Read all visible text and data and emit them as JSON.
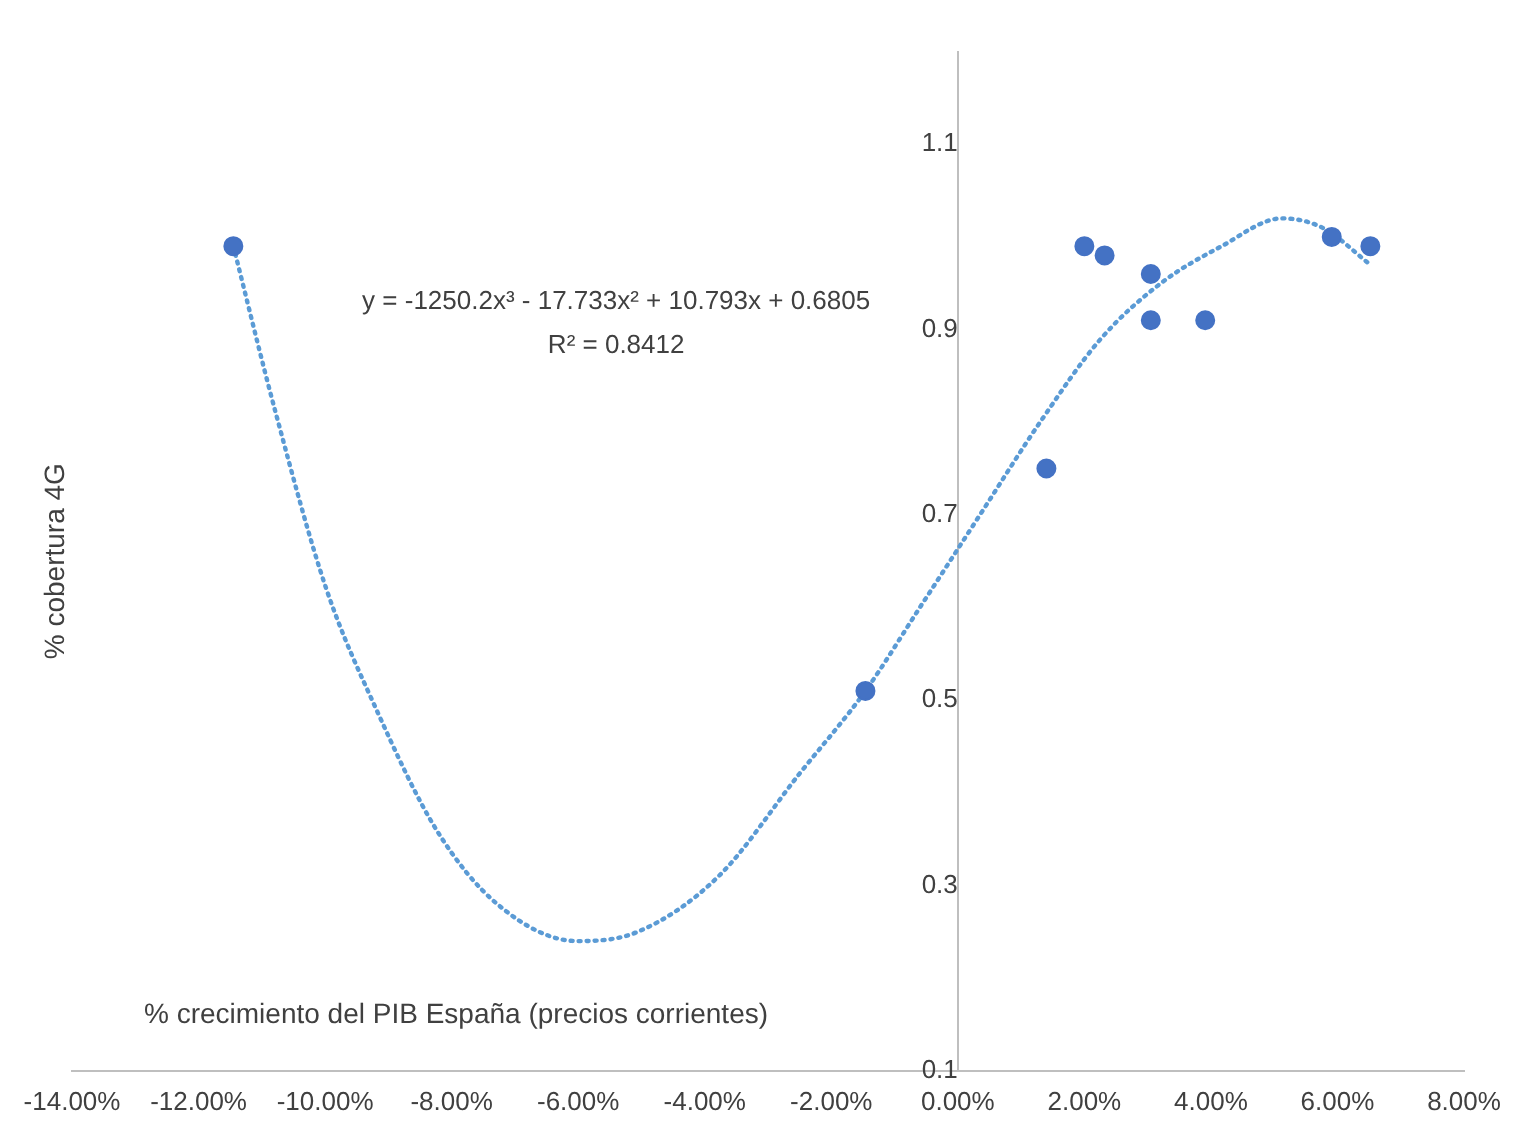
{
  "chart_data": {
    "type": "scatter",
    "xlabel": "% crecimiento del PIB España (precios corrientes)",
    "ylabel": "% cobertura 4G",
    "annotations": [
      "y = -1250.2x³ - 17.733x² + 10.793x + 0.6805",
      "R² = 0.8412"
    ],
    "xlim": [
      -14,
      8
    ],
    "xticks": [
      {
        "value": -14,
        "label": "-14.00%"
      },
      {
        "value": -12,
        "label": "-12.00%"
      },
      {
        "value": -10,
        "label": "-10.00%"
      },
      {
        "value": -8,
        "label": "-8.00%"
      },
      {
        "value": -6,
        "label": "-6.00%"
      },
      {
        "value": -4,
        "label": "-4.00%"
      },
      {
        "value": -2,
        "label": "-2.00%"
      },
      {
        "value": 0,
        "label": "0.00%"
      },
      {
        "value": 2,
        "label": "2.00%"
      },
      {
        "value": 4,
        "label": "4.00%"
      },
      {
        "value": 6,
        "label": "6.00%"
      },
      {
        "value": 8,
        "label": "8.00%"
      }
    ],
    "ylim": [
      0.1,
      1.2
    ],
    "yticks": [
      0.1,
      0.3,
      0.5,
      0.7,
      0.9,
      1.1
    ],
    "grid": false,
    "legend": false,
    "marker": "circle",
    "series": [
      {
        "type": "scatter",
        "color": "#4472c4",
        "x": [
          -11.45,
          -1.46,
          1.4,
          2.0,
          2.32,
          3.05,
          3.05,
          3.91,
          5.91,
          6.52
        ],
        "values": [
          0.99,
          0.51,
          0.75,
          0.99,
          0.98,
          0.96,
          0.91,
          0.91,
          1.0,
          0.99
        ]
      },
      {
        "type": "line",
        "color": "#5b9bd5",
        "line_style": "dotted",
        "marker": "none",
        "x": [
          -11.45,
          -10.78,
          -9.98,
          -9.19,
          -8.24,
          -7.28,
          -6.01,
          -5.06,
          -3.78,
          -2.51,
          -1.46,
          -0.6,
          0.35,
          1.3,
          2.26,
          3.21,
          4.17,
          5.12,
          5.76,
          6.52
        ],
        "values": [
          0.99,
          0.81,
          0.62,
          0.49,
          0.36,
          0.28,
          0.24,
          0.25,
          0.31,
          0.42,
          0.51,
          0.6,
          0.7,
          0.8,
          0.89,
          0.95,
          0.99,
          1.02,
          1.01,
          0.97
        ]
      }
    ]
  }
}
